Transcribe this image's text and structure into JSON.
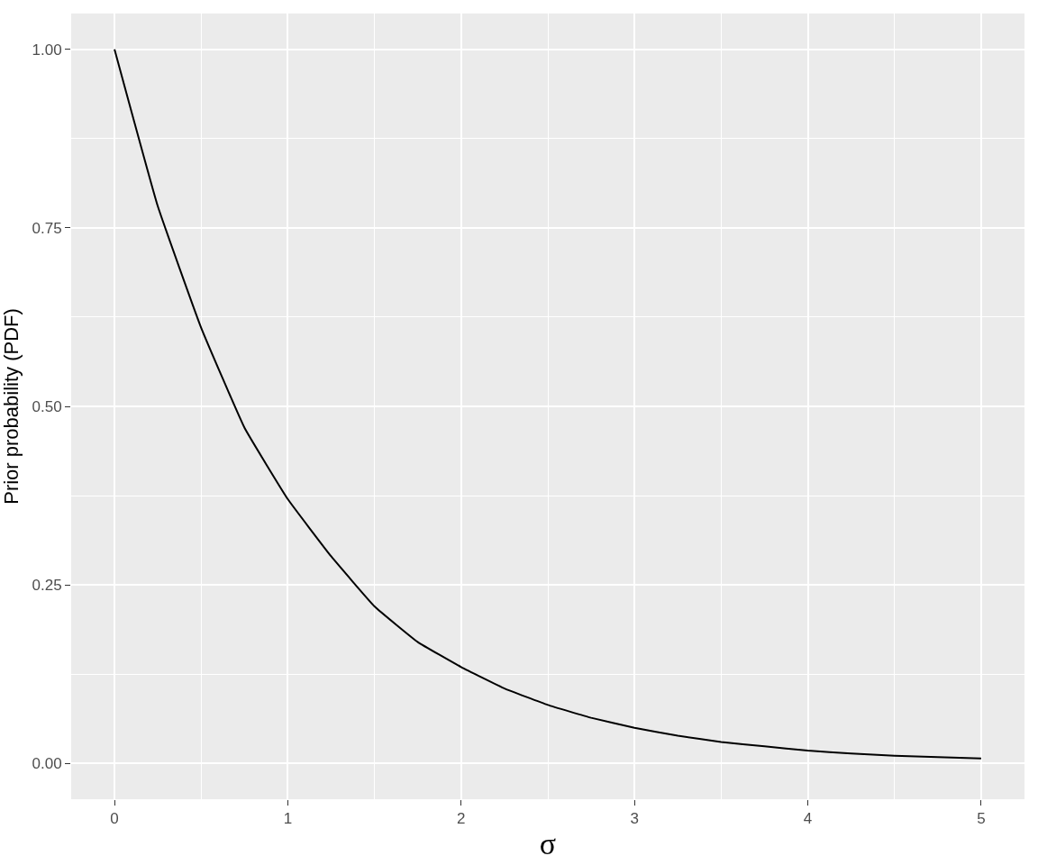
{
  "chart_data": {
    "type": "line",
    "xlabel": "σ",
    "ylabel": "Prior probability (PDF)",
    "x": [
      0,
      0.25,
      0.5,
      0.75,
      1,
      1.25,
      1.5,
      1.75,
      2,
      2.25,
      2.5,
      2.75,
      3,
      3.25,
      3.5,
      3.75,
      4,
      4.25,
      4.5,
      4.75,
      5
    ],
    "series": [
      {
        "color": "#000000",
        "values": [
          1.0,
          0.78,
          0.61,
          0.47,
          0.37,
          0.29,
          0.22,
          0.17,
          0.135,
          0.105,
          0.082,
          0.064,
          0.05,
          0.039,
          0.03,
          0.024,
          0.018,
          0.014,
          0.011,
          0.009,
          0.007
        ]
      }
    ],
    "xlim": [
      -0.25,
      5.25
    ],
    "xticks": [
      0,
      1,
      2,
      3,
      4,
      5
    ],
    "ylim": [
      -0.05,
      1.05
    ],
    "yticks": [
      {
        "value": 0,
        "label": "0.00"
      },
      {
        "value": 0.25,
        "label": "0.25"
      },
      {
        "value": 0.5,
        "label": "0.50"
      },
      {
        "value": 0.75,
        "label": "0.75"
      },
      {
        "value": 1,
        "label": "1.00"
      }
    ],
    "grid": true,
    "marker": "none",
    "line_style": "solid"
  }
}
